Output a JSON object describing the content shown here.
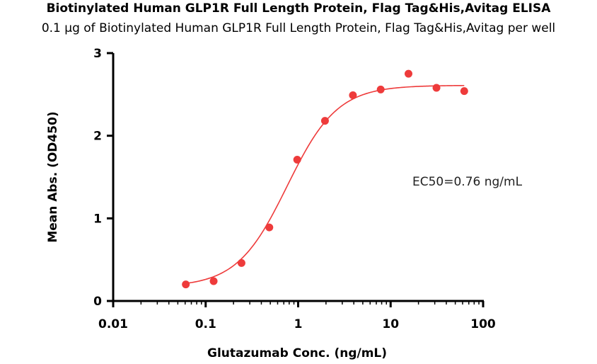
{
  "chart_data": {
    "type": "scatter",
    "title": "Biotinylated Human GLP1R Full Length Protein, Flag Tag&His,Avitag ELISA",
    "subtitle": "0.1 μg of Biotinylated Human GLP1R Full Length Protein, Flag Tag&His,Avitag per well",
    "xlabel": "Glutazumab Conc. (ng/mL)",
    "ylabel": "Mean Abs. (OD450)",
    "x_scale": "log",
    "xlim": [
      0.01,
      100
    ],
    "ylim": [
      0,
      3
    ],
    "x_ticks": [
      "0.01",
      "0.1",
      "1",
      "10",
      "100"
    ],
    "x_tick_values": [
      0.01,
      0.1,
      1,
      10,
      100
    ],
    "y_ticks": [
      "0",
      "1",
      "2",
      "3"
    ],
    "y_tick_values": [
      0,
      1,
      2,
      3
    ],
    "grid": false,
    "annotation": "EC50=0.76 ng/mL",
    "points": {
      "x": [
        0.061,
        0.122,
        0.244,
        0.488,
        0.977,
        1.95,
        3.91,
        7.81,
        15.6,
        31.3,
        62.5
      ],
      "y": [
        0.2,
        0.24,
        0.46,
        0.89,
        1.71,
        2.18,
        2.49,
        2.56,
        2.75,
        2.58,
        2.54
      ]
    },
    "fit": {
      "model": "4PL",
      "bottom": 0.17,
      "top": 2.61,
      "ec50": 0.76,
      "hill": 1.6,
      "x_range": [
        0.061,
        62.5
      ]
    },
    "color": "#ee3b3b"
  }
}
